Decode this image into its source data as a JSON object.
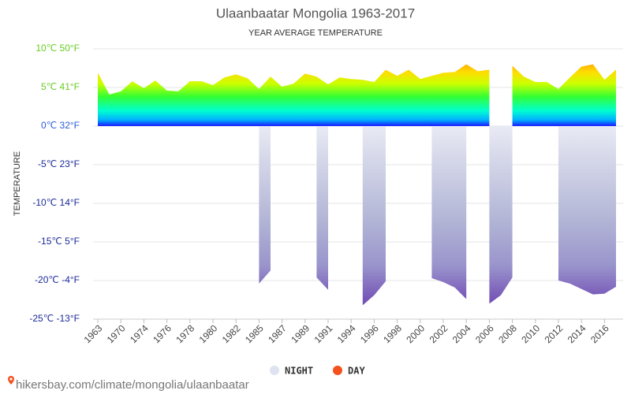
{
  "chart_data": {
    "type": "area",
    "title": "Ulaanbaatar Mongolia 1963-2017",
    "subtitle": "YEAR AVERAGE TEMPERATURE",
    "y_label": "TEMPERATURE",
    "footer": "hikersbay.com/climate/mongolia/ulaanbaatar",
    "categories": [
      "1963",
      null,
      "1970",
      null,
      "1974",
      null,
      "1976",
      null,
      "1978",
      null,
      "1980",
      null,
      "1982",
      null,
      "1985",
      null,
      "1987",
      null,
      "1989",
      null,
      "1991",
      null,
      "1994",
      null,
      "1996",
      null,
      "1998",
      null,
      "2000",
      null,
      "2002",
      null,
      "2004",
      null,
      "2006",
      null,
      "2008",
      null,
      "2010",
      null,
      "2012",
      null,
      "2014",
      null,
      "2016",
      null
    ],
    "series": [
      {
        "name": "NIGHT",
        "color": "#dfe2f0",
        "values": [
          null,
          null,
          null,
          null,
          null,
          null,
          null,
          null,
          null,
          null,
          null,
          null,
          null,
          null,
          -20.4,
          -18.7,
          null,
          null,
          null,
          -19.6,
          -21.2,
          null,
          null,
          -23.2,
          -21.9,
          -20.1,
          null,
          null,
          null,
          -19.7,
          -20.2,
          -20.9,
          -22.4,
          null,
          -23.0,
          -21.9,
          -19.6,
          null,
          null,
          null,
          -20.0,
          -20.4,
          -21.1,
          -21.8,
          -21.7,
          -20.8
        ]
      },
      {
        "name": "DAY",
        "color": "#f4511e",
        "values": [
          6.9,
          4.1,
          4.5,
          5.8,
          4.9,
          5.9,
          4.6,
          4.5,
          5.8,
          5.8,
          5.3,
          6.3,
          6.7,
          6.2,
          4.8,
          6.4,
          5.1,
          5.5,
          6.8,
          6.4,
          5.4,
          6.3,
          6.1,
          6.0,
          5.7,
          7.3,
          6.5,
          7.3,
          6.1,
          6.5,
          6.9,
          7.0,
          8.0,
          7.1,
          7.3,
          null,
          7.8,
          6.4,
          5.7,
          5.7,
          4.8,
          6.3,
          7.7,
          8.0,
          6.0,
          7.3
        ]
      }
    ],
    "ylim": [
      -25,
      10
    ],
    "yticks": [
      {
        "value": 10,
        "label": "10℃ 50°F"
      },
      {
        "value": 5,
        "label": "5℃ 41°F"
      },
      {
        "value": 0,
        "label": "0℃ 32°F"
      },
      {
        "value": -5,
        "label": "-5℃ 23°F"
      },
      {
        "value": -10,
        "label": "-10℃ 14°F"
      },
      {
        "value": -15,
        "label": "-15℃ 5°F"
      },
      {
        "value": -20,
        "label": "-20℃ -4°F"
      },
      {
        "value": -25,
        "label": "-25℃ -13°F"
      }
    ],
    "grid": true
  }
}
